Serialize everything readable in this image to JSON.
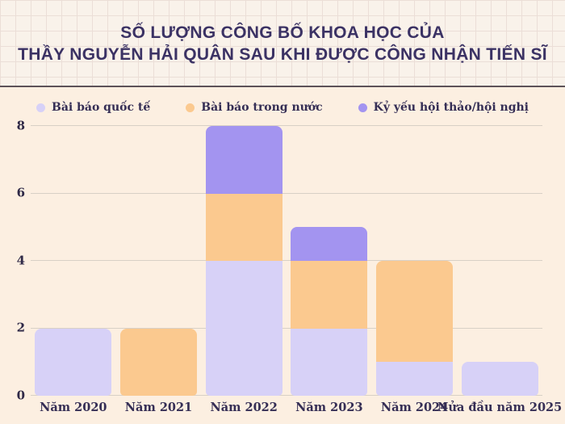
{
  "title": {
    "line1": "SỐ LƯỢNG CÔNG BỐ KHOA HỌC CỦA",
    "line2": "THẦY NGUYỄN HẢI QUÂN SAU KHI ĐƯỢC CÔNG NHẬN TIẾN SĨ"
  },
  "colors": {
    "background": "#fcefe1",
    "header_background": "#f9f2ea",
    "header_grid_line": "#ebded7",
    "separator": "#5d5359",
    "title_text": "#3b3264",
    "label_text": "#352e55",
    "grid_line": "#d8d0c6",
    "series_international": "#d7d1f7",
    "series_domestic": "#fbc98f",
    "series_proceedings": "#a394f0"
  },
  "legend": [
    {
      "label": "Bài báo quốc tế",
      "color": "#d7d1f7"
    },
    {
      "label": "Bài báo trong nước",
      "color": "#fbc98f"
    },
    {
      "label": "Kỷ yếu hội thảo/hội nghị",
      "color": "#a394f0"
    }
  ],
  "chart_data": {
    "type": "bar",
    "stacked": true,
    "title": "Số lượng công bố khoa học của thầy Nguyễn Hải Quân sau khi được công nhận tiến sĩ",
    "xlabel": "",
    "ylabel": "",
    "categories": [
      "Năm 2020",
      "Năm 2021",
      "Năm 2022",
      "Năm 2023",
      "Năm 2024",
      "Nửa đầu năm 2025"
    ],
    "series": [
      {
        "name": "Bài báo quốc tế",
        "color": "#d7d1f7",
        "values": [
          2,
          0,
          4,
          2,
          1,
          1
        ]
      },
      {
        "name": "Bài báo trong nước",
        "color": "#fbc98f",
        "values": [
          0,
          2,
          2,
          2,
          3,
          0
        ]
      },
      {
        "name": "Kỷ yếu hội thảo/hội nghị",
        "color": "#a394f0",
        "values": [
          0,
          0,
          2,
          1,
          0,
          0
        ]
      }
    ],
    "y_ticks": [
      0,
      2,
      4,
      6,
      8
    ],
    "ylim": [
      0,
      8
    ],
    "grid": "horizontal",
    "legend_position": "top"
  }
}
